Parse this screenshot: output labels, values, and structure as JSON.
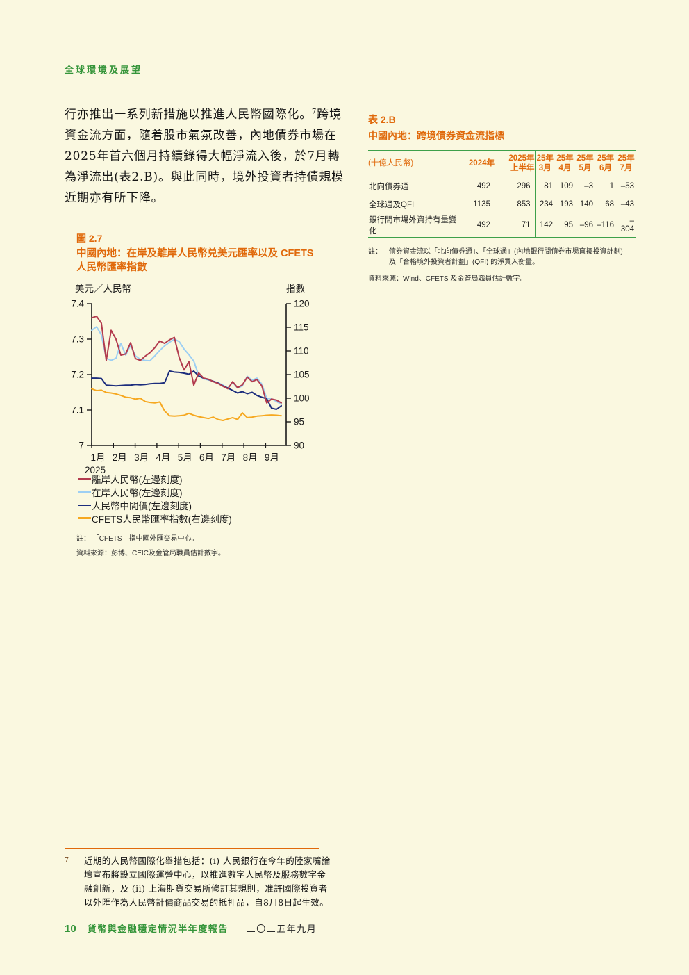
{
  "theme": {
    "cream": "#faf8e0",
    "green": "#35953a",
    "orange": "#e0690b",
    "tablegreen": "#3da04a",
    "axis": "#1a1a1a"
  },
  "header": {
    "section": "全球環境及展望"
  },
  "paragraph": {
    "line1a": "行亦推出一系列新措施以推進人民幣國際化。",
    "footnote_ref": "7",
    "line1b": "跨境",
    "line2": "資金流方面，隨着股市氣氛改善，內地債券市場在",
    "line3": "2025年首六個月持續錄得大幅淨流入後，於7月轉",
    "line4": "為淨流出(表2.B)。與此同時，境外投資者持債規模",
    "line5": "近期亦有所下降。"
  },
  "table": {
    "id": "表 2.B",
    "title": "中國內地：跨境債券資金流指標",
    "header": {
      "unit": "(十億人民幣)",
      "col_2024": "2024年",
      "col_2025_top": "2025年",
      "col_2025_bottom": "上半年",
      "months_top": [
        "25年",
        "25年",
        "25年",
        "25年",
        "25年"
      ],
      "months_bottom": [
        "3月",
        "4月",
        "5月",
        "6月",
        "7月"
      ]
    },
    "rows": [
      {
        "label": "北向債券通",
        "values": [
          "492",
          "296",
          "81",
          "109",
          "–3",
          "1",
          "–53"
        ]
      },
      {
        "label": "全球通及QFI",
        "values": [
          "1135",
          "853",
          "234",
          "193",
          "140",
          "68",
          "–43"
        ]
      },
      {
        "label": "銀行間市場外資持有量變化",
        "values": [
          "492",
          "71",
          "142",
          "95",
          "–96",
          "–116",
          "–304"
        ]
      }
    ],
    "note_label": "註：",
    "note_text": "債券資金流以「北向債券通」、「全球通」(內地銀行間債券市場直接投資計劃) 及「合格境外投資者計劃」(QFI) 的淨買入衡量。",
    "source": "資料來源：Wind、CFETS 及金管局職員估計數字。"
  },
  "figure": {
    "id": "圖 2.7",
    "title_line1": "中國內地：在岸及離岸人民幣兑美元匯率以及 CFETS",
    "title_line2": "人民幣匯率指數",
    "note": "註： 「CFETS」指中國外匯交易中心。",
    "source": "資料來源：彭博、CEIC及金管局職員估計數字。"
  },
  "chart_data": {
    "type": "line",
    "x_unit": "weekly, Jan–Sep 2025",
    "left_axis": {
      "label": "美元／人民幣",
      "min": 7.0,
      "max": 7.4,
      "ticks": [
        "7.4",
        "7.3",
        "7.2",
        "7.1",
        "7"
      ]
    },
    "right_axis": {
      "label": "指數",
      "min": 90,
      "max": 120,
      "ticks": [
        "120",
        "115",
        "110",
        "105",
        "100",
        "95",
        "90"
      ]
    },
    "x_axis": {
      "months": [
        "1月",
        "2月",
        "3月",
        "4月",
        "5月",
        "6月",
        "7月",
        "8月",
        "9月"
      ],
      "year": "2025"
    },
    "series": [
      {
        "name": "離岸人民幣(左邊刻度)",
        "color": "#b23b4e",
        "axis": "left",
        "values": [
          7.36,
          7.365,
          7.345,
          7.24,
          7.325,
          7.3,
          7.255,
          7.258,
          7.29,
          7.245,
          7.24,
          7.252,
          7.262,
          7.276,
          7.295,
          7.288,
          7.298,
          7.305,
          7.248,
          7.213,
          7.236,
          7.17,
          7.205,
          7.19,
          7.187,
          7.18,
          7.175,
          7.167,
          7.16,
          7.18,
          7.163,
          7.171,
          7.193,
          7.18,
          7.186,
          7.168,
          7.12,
          7.131,
          7.128,
          7.12
        ]
      },
      {
        "name": "在岸人民幣(左邊刻度)",
        "color": "#9dcff3",
        "axis": "left",
        "values": [
          7.325,
          7.335,
          7.312,
          7.246,
          7.24,
          7.246,
          7.288,
          7.255,
          7.283,
          7.253,
          7.243,
          7.24,
          7.239,
          7.253,
          7.268,
          7.281,
          7.291,
          7.3,
          7.293,
          7.272,
          7.256,
          7.238,
          7.198,
          7.188,
          7.185,
          7.181,
          7.177,
          7.17,
          7.162,
          7.178,
          7.162,
          7.168,
          7.195,
          7.184,
          7.19,
          7.173,
          7.133,
          7.132,
          7.124,
          7.116
        ]
      },
      {
        "name": "人民幣中間價(左邊刻度)",
        "color": "#1c2d7d",
        "axis": "left",
        "values": [
          7.19,
          7.19,
          7.189,
          7.17,
          7.169,
          7.168,
          7.169,
          7.17,
          7.17,
          7.172,
          7.171,
          7.172,
          7.174,
          7.175,
          7.175,
          7.177,
          7.21,
          7.207,
          7.206,
          7.204,
          7.201,
          7.21,
          7.196,
          7.19,
          7.186,
          7.181,
          7.176,
          7.168,
          7.162,
          7.155,
          7.148,
          7.152,
          7.146,
          7.15,
          7.141,
          7.136,
          7.132,
          7.105,
          7.102,
          7.112
        ]
      },
      {
        "name": "CFETS人民幣匯率指數(右邊刻度)",
        "color": "#f6a820",
        "axis": "right",
        "values": [
          102.0,
          101.6,
          101.7,
          101.2,
          101.1,
          100.9,
          100.6,
          100.2,
          100.1,
          99.8,
          100.0,
          99.3,
          99.1,
          99.0,
          99.2,
          97.3,
          96.3,
          96.2,
          96.3,
          96.4,
          96.8,
          96.4,
          96.1,
          95.9,
          95.7,
          96.0,
          95.5,
          95.3,
          95.6,
          95.9,
          95.5,
          96.9,
          95.9,
          96.0,
          96.2,
          96.3,
          96.4,
          96.45,
          96.4,
          96.3
        ]
      }
    ]
  },
  "footnote": {
    "marker": "7",
    "text": "近期的人民幣國際化舉措包括：(i) 人民銀行在今年的陸家嘴論\n壇宣布將設立國際運營中心，以推進數字人民幣及服務數字金\n融創新，及 (ii) 上海期貨交易所修訂其規則，准許國際投資者\n以外匯作為人民幣計價商品交易的抵押品，自8月8日起生效。"
  },
  "footer": {
    "page_number": "10",
    "report_title": "貨幣與金融穩定情況半年度報告",
    "date": "二〇二五年九月"
  }
}
